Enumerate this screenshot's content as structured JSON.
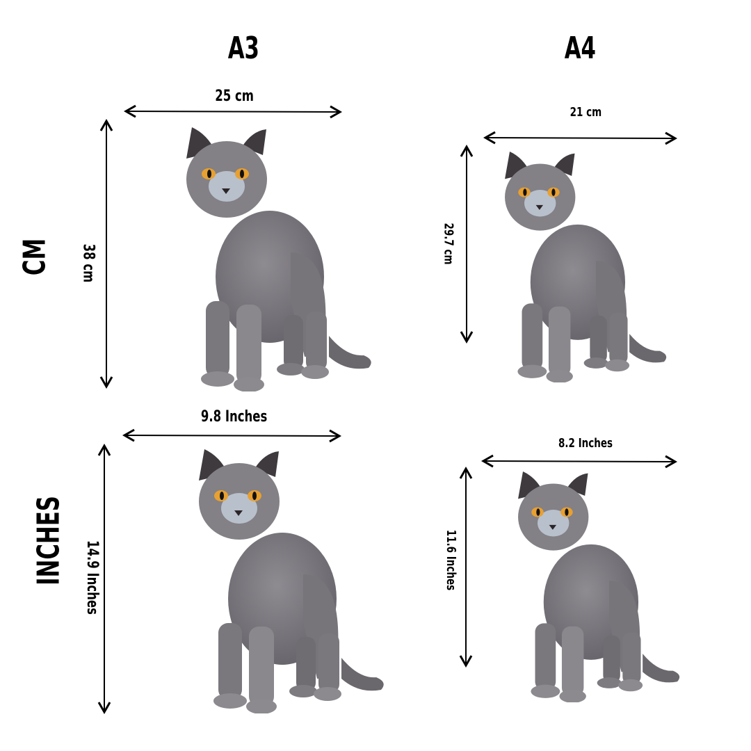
{
  "columns": [
    {
      "label": "A3"
    },
    {
      "label": "A4"
    }
  ],
  "rows": [
    {
      "label": "CM"
    },
    {
      "label": "INCHES"
    }
  ],
  "panels": {
    "a3_cm": {
      "width": "25 cm",
      "height": "38 cm"
    },
    "a4_cm": {
      "width": "21 cm",
      "height": "29.7 cm"
    },
    "a3_in": {
      "width": "9.8 Inches",
      "height": "14.9 Inches"
    },
    "a4_in": {
      "width": "8.2 Inches",
      "height": "11.6 Inches"
    }
  },
  "colors": {
    "text": "#000000",
    "cat_fur": "#7d7a80",
    "cat_eye": "#e8a030"
  }
}
